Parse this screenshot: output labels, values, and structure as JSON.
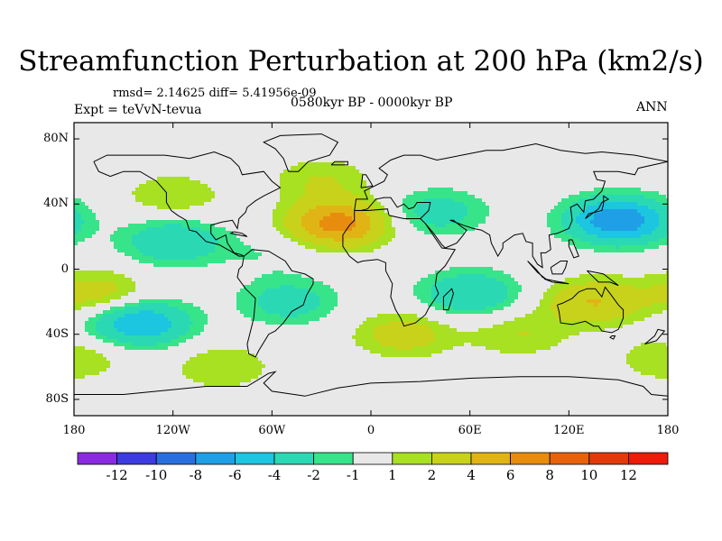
{
  "title": "Streamfunction Perturbation at 200 hPa (km2/s)",
  "stats": "rmsd= 2.14625  diff= 5.41956e-09",
  "experiment": "Expt = teVvN-tevua",
  "period": "0580kyr BP - 0000kyr BP",
  "season": "ANN",
  "lat_ticks": [
    {
      "label": "80N",
      "lat": 80
    },
    {
      "label": "40N",
      "lat": 40
    },
    {
      "label": "0",
      "lat": 0
    },
    {
      "label": "40S",
      "lat": -40
    },
    {
      "label": "80S",
      "lat": -80
    }
  ],
  "lon_ticks": [
    {
      "label": "180",
      "lon": -180
    },
    {
      "label": "120W",
      "lon": -120
    },
    {
      "label": "60W",
      "lon": -60
    },
    {
      "label": "0",
      "lon": 0
    },
    {
      "label": "60E",
      "lon": 60
    },
    {
      "label": "120E",
      "lon": 120
    },
    {
      "label": "180",
      "lon": 180
    }
  ],
  "colorbar": {
    "labels": [
      "-12",
      "-10",
      "-8",
      "-6",
      "-4",
      "-2",
      "-1",
      "1",
      "2",
      "4",
      "6",
      "8",
      "10",
      "12"
    ],
    "colors": [
      "#8a2be2",
      "#3c3ce0",
      "#2a6fe0",
      "#1f9fe6",
      "#1cc5e0",
      "#2ad9b4",
      "#37e48a",
      "#e8e8e8",
      "#a8e022",
      "#c8d21a",
      "#e0b414",
      "#e88c0e",
      "#e8620c",
      "#e23a0a",
      "#ee1a0a"
    ]
  },
  "chart_data": {
    "type": "heatmap",
    "variable": "Streamfunction Perturbation at 200 hPa",
    "units": "km2/s",
    "contour_levels": [
      -12,
      -10,
      -8,
      -6,
      -4,
      -2,
      -1,
      1,
      2,
      4,
      6,
      8,
      10,
      12
    ],
    "features": [
      {
        "lon": -20,
        "lat": 28,
        "value": 7
      },
      {
        "lon": -120,
        "lat": 45,
        "value": 2
      },
      {
        "lon": -30,
        "lat": 55,
        "value": 2
      },
      {
        "lon": 150,
        "lat": 30,
        "value": -8
      },
      {
        "lon": 40,
        "lat": 35,
        "value": -3
      },
      {
        "lon": 135,
        "lat": -20,
        "value": 4
      },
      {
        "lon": -165,
        "lat": -15,
        "value": 3
      },
      {
        "lon": -140,
        "lat": -33,
        "value": -6
      },
      {
        "lon": -120,
        "lat": 17,
        "value": -4
      },
      {
        "lon": 60,
        "lat": -15,
        "value": -4
      },
      {
        "lon": -50,
        "lat": -20,
        "value": -3
      },
      {
        "lon": 20,
        "lat": -40,
        "value": 3
      },
      {
        "lon": 90,
        "lat": -40,
        "value": 2
      },
      {
        "lon": -90,
        "lat": -60,
        "value": 2
      },
      {
        "lon": 180,
        "lat": -55,
        "value": 2
      },
      {
        "lon": -60,
        "lat": 10,
        "value": -1
      }
    ],
    "xlim": [
      -180,
      180
    ],
    "ylim": [
      -90,
      90
    ]
  }
}
